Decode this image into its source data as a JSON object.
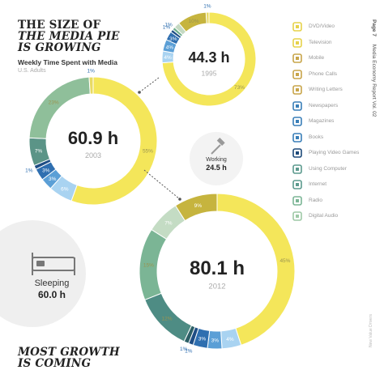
{
  "header": {
    "title_lines": [
      "THE SIZE OF",
      "THE MEDIA PIE",
      "IS GROWING"
    ],
    "subtitle": "Weekly Time Spent with Media",
    "region": "U.S. Adults"
  },
  "footer": {
    "title_lines": [
      "MOST GROWTH",
      "IS COMING"
    ]
  },
  "side_note": {
    "page": "Page 7",
    "report": "Media Economy Report Vol. 02"
  },
  "credit": "New Value Drivers",
  "legend": [
    {
      "label": "DVD/Video",
      "icon": "dvd-icon",
      "color": "#e6d24a"
    },
    {
      "label": "Television",
      "icon": "television-icon",
      "color": "#e6d24a"
    },
    {
      "label": "Mobile",
      "icon": "mobile-icon",
      "color": "#c8a54a"
    },
    {
      "label": "Phone Calls",
      "icon": "phone-icon",
      "color": "#c8a54a"
    },
    {
      "label": "Writing Letters",
      "icon": "pencil-icon",
      "color": "#c8a54a"
    },
    {
      "label": "Newspapers",
      "icon": "newspaper-icon",
      "color": "#3a7fb8"
    },
    {
      "label": "Magazines",
      "icon": "magazine-icon",
      "color": "#3a7fb8"
    },
    {
      "label": "Books",
      "icon": "book-icon",
      "color": "#3a7fb8"
    },
    {
      "label": "Playing Video Games",
      "icon": "gamepad-icon",
      "color": "#1e4a7a"
    },
    {
      "label": "Using Computer",
      "icon": "computer-icon",
      "color": "#5c9a8e"
    },
    {
      "label": "Internet",
      "icon": "internet-icon",
      "color": "#5c9a8e"
    },
    {
      "label": "Radio",
      "icon": "radio-icon",
      "color": "#7bb595"
    },
    {
      "label": "Digital Audio",
      "icon": "audio-icon",
      "color": "#9ec9a6"
    }
  ],
  "chart_data": {
    "type": "donut",
    "pies": [
      {
        "year": "1995",
        "total": "44.3 h",
        "slices": [
          {
            "value": 73,
            "label": "73%",
            "color": "#f4e65a"
          },
          {
            "value": 4,
            "label": "4%",
            "color": "#a9d3f1"
          },
          {
            "value": 4,
            "label": "4%",
            "color": "#5b9fd6"
          },
          {
            "value": 3,
            "label": "3%",
            "color": "#2f6fb0"
          },
          {
            "value": 1,
            "label": "1%",
            "color": "#1f4e85"
          },
          {
            "value": 1,
            "label": "1%",
            "color": "#6fae8d"
          },
          {
            "value": 2,
            "label": "",
            "color": "#c4d9c2"
          },
          {
            "value": 10,
            "label": "10%",
            "color": "#c6b43e"
          },
          {
            "value": 1,
            "label": "1%",
            "color": "#e8da63"
          }
        ]
      },
      {
        "year": "2003",
        "total": "60.9 h",
        "slices": [
          {
            "value": 55,
            "label": "55%",
            "color": "#f4e65a"
          },
          {
            "value": 6,
            "label": "6%",
            "color": "#a9d3f1"
          },
          {
            "value": 3,
            "label": "3%",
            "color": "#5b9fd6"
          },
          {
            "value": 3,
            "label": "3%",
            "color": "#2f6fb0"
          },
          {
            "value": 1,
            "label": "1%",
            "color": "#1f4e85"
          },
          {
            "value": 7,
            "label": "7%",
            "color": "#5b9487"
          },
          {
            "value": 23,
            "label": "23%",
            "color": "#8fbf9a"
          },
          {
            "value": 1,
            "label": "1%",
            "color": "#e8da63"
          }
        ]
      },
      {
        "year": "2012",
        "total": "80.1 h",
        "slices": [
          {
            "value": 45,
            "label": "45%",
            "color": "#f4e65a"
          },
          {
            "value": 4,
            "label": "4%",
            "color": "#a9d3f1"
          },
          {
            "value": 3,
            "label": "3%",
            "color": "#5b9fd6"
          },
          {
            "value": 3,
            "label": "3%",
            "color": "#2f6fb0"
          },
          {
            "value": 1,
            "label": "1%",
            "color": "#1f4e85"
          },
          {
            "value": 1,
            "label": "1%",
            "color": "#2c5f66"
          },
          {
            "value": 12,
            "label": "12%",
            "color": "#4e8c84"
          },
          {
            "value": 15,
            "label": "15%",
            "color": "#7bb595"
          },
          {
            "value": 7,
            "label": "7%",
            "color": "#c4dcc4"
          },
          {
            "value": 9,
            "label": "9%",
            "color": "#c6b43e"
          }
        ]
      }
    ],
    "other_activities": [
      {
        "label": "Sleeping",
        "value": "60.0 h"
      },
      {
        "label": "Working",
        "value": "24.5 h"
      }
    ]
  }
}
